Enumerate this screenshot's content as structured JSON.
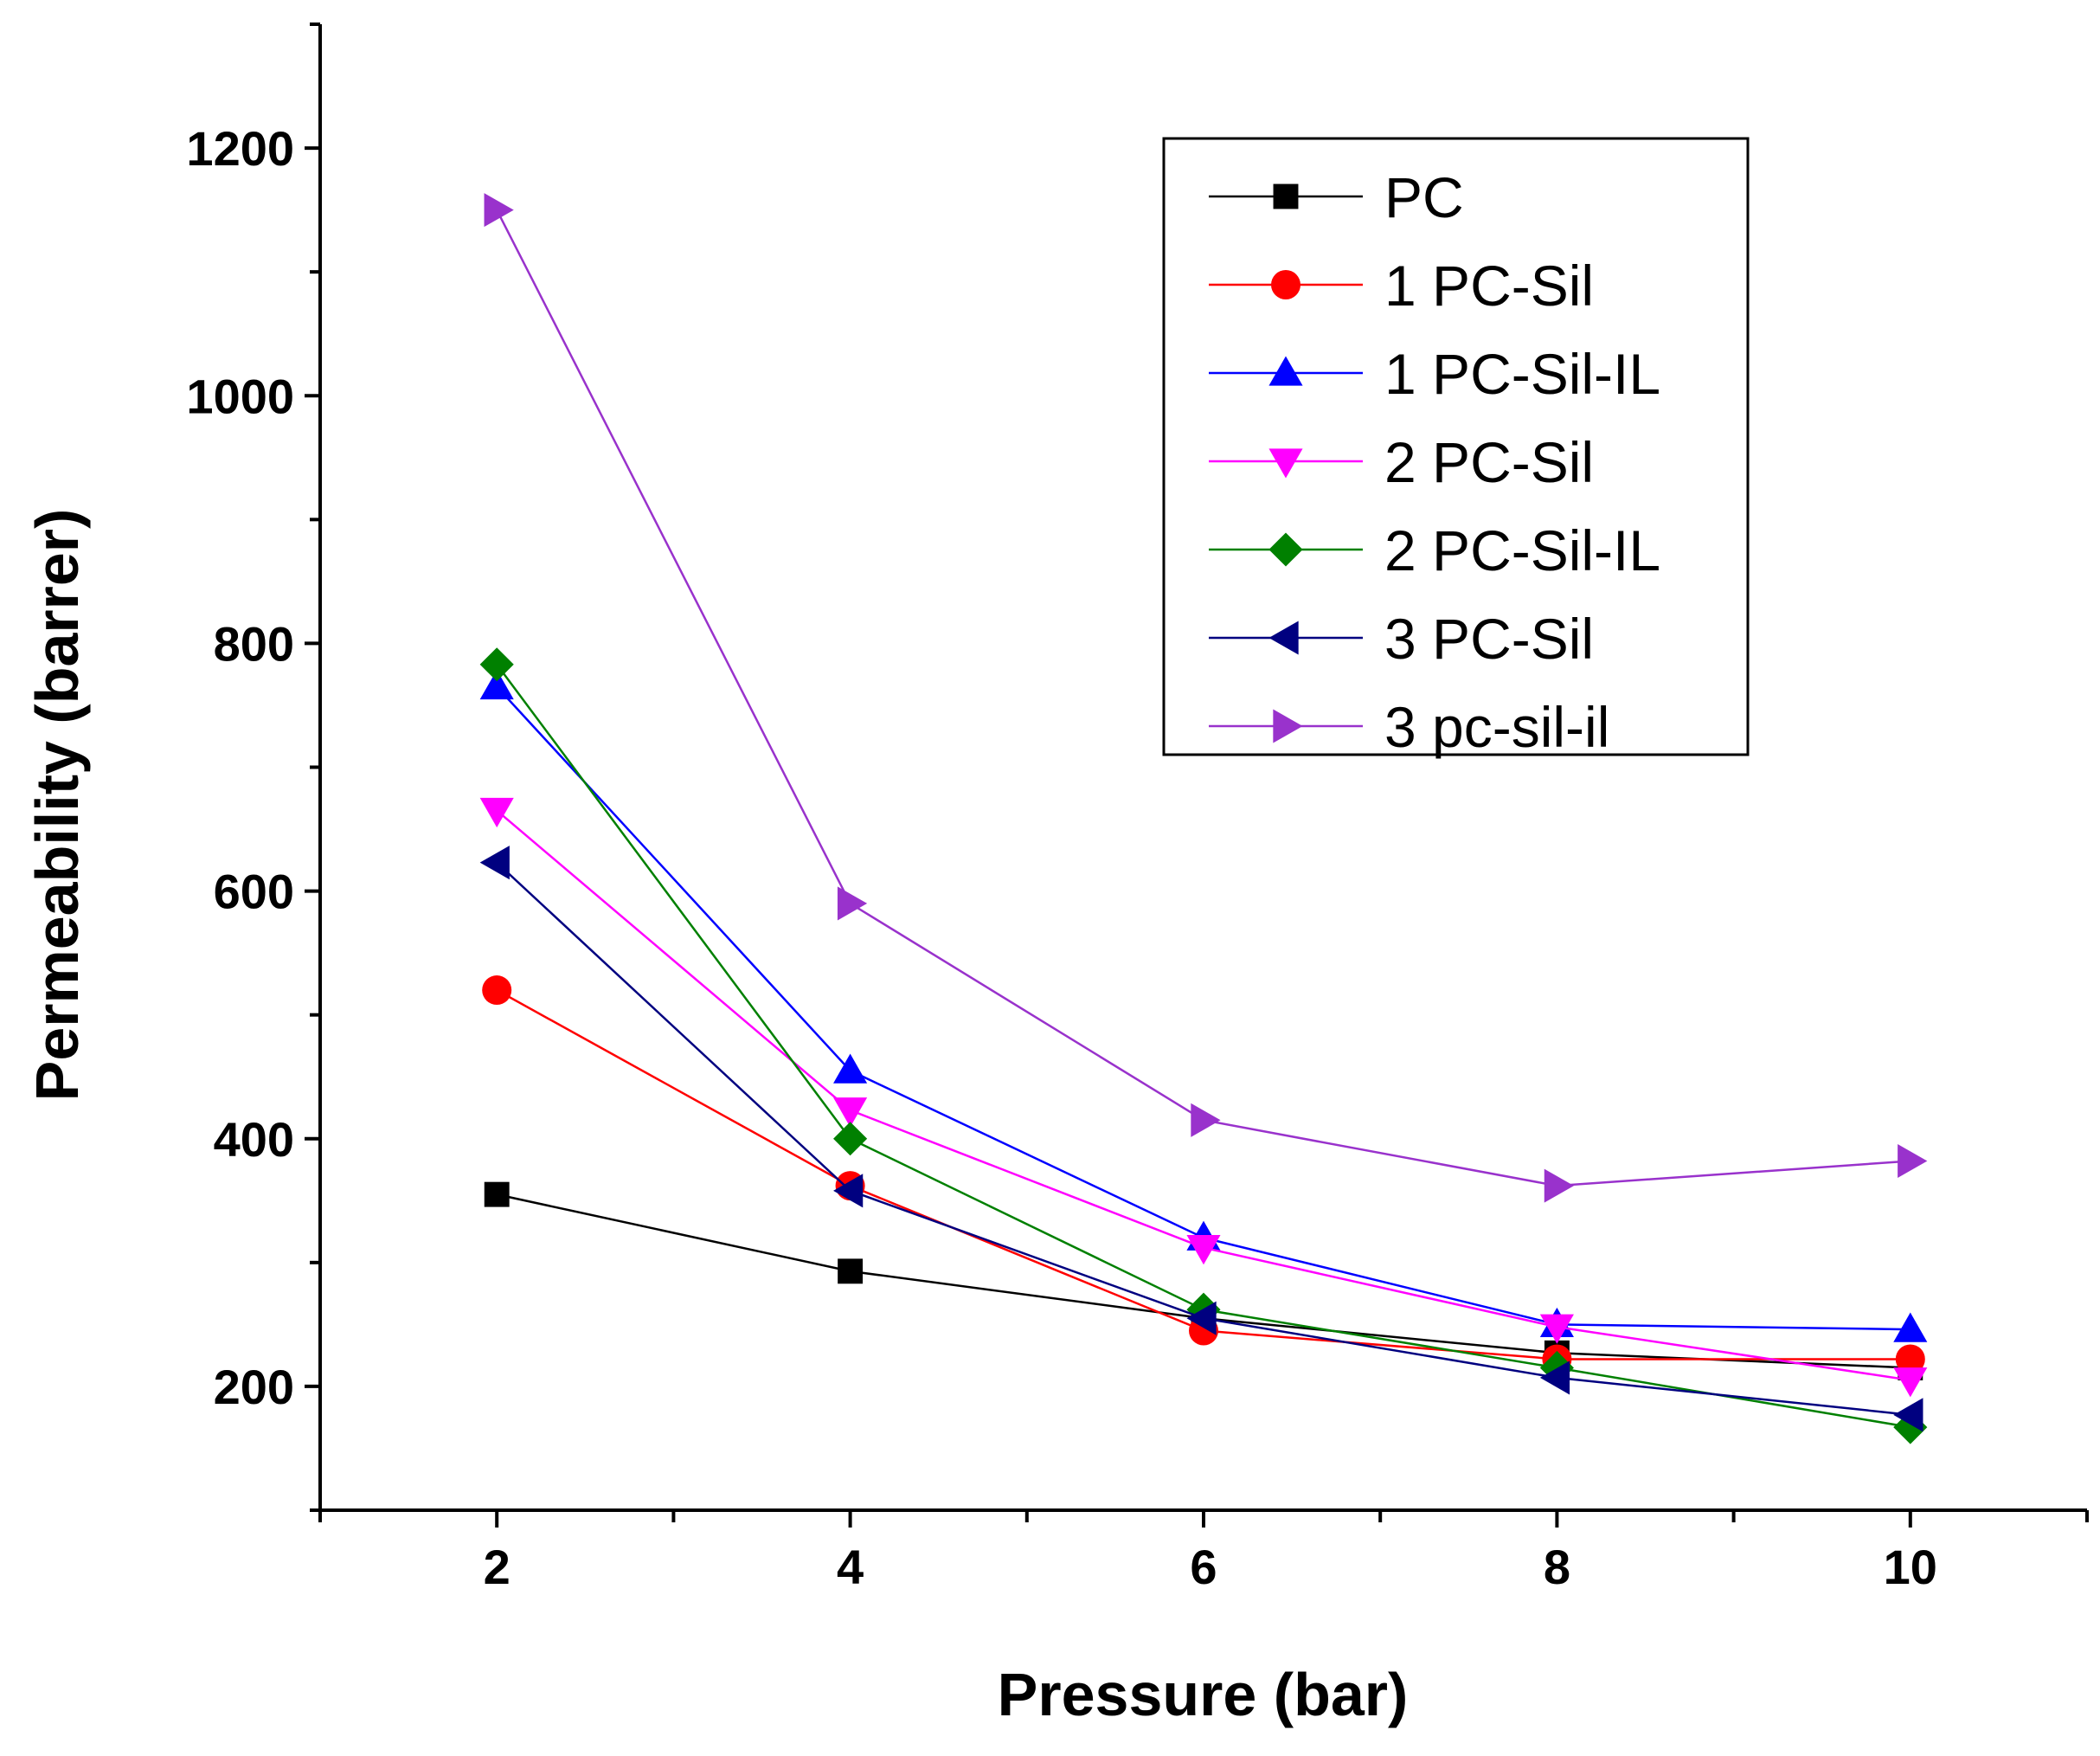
{
  "chart_data": {
    "type": "line",
    "title": "",
    "xlabel": "Pressure (bar)",
    "ylabel": "Permeability (barrer)",
    "x": [
      2,
      4,
      6,
      8,
      10
    ],
    "xlim": [
      1,
      11
    ],
    "ylim": [
      100,
      1300
    ],
    "x_ticks": [
      2,
      4,
      6,
      8,
      10
    ],
    "y_ticks": [
      200,
      400,
      600,
      800,
      1000,
      1200
    ],
    "grid": false,
    "legend_position": "top-right",
    "series": [
      {
        "name": "PC",
        "marker": "square",
        "color": "#000000",
        "values": [
          355,
          293,
          255,
          227,
          215
        ]
      },
      {
        "name": "1 PC-Sil",
        "marker": "circle",
        "color": "#ff0000",
        "values": [
          520,
          362,
          245,
          222,
          222
        ]
      },
      {
        "name": "1 PC-Sil-IL",
        "marker": "triangle-up",
        "color": "#0000ff",
        "values": [
          765,
          455,
          320,
          250,
          246
        ]
      },
      {
        "name": "2 PC-Sil",
        "marker": "triangle-down",
        "color": "#ff00ff",
        "values": [
          665,
          423,
          312,
          248,
          205
        ]
      },
      {
        "name": "2 PC-Sil-IL",
        "marker": "diamond",
        "color": "#008000",
        "values": [
          783,
          400,
          262,
          215,
          167
        ]
      },
      {
        "name": "3 PC-Sil",
        "marker": "triangle-left",
        "color": "#000080",
        "values": [
          623,
          358,
          255,
          207,
          177
        ]
      },
      {
        "name": "3 pc-sil-il",
        "marker": "triangle-right",
        "color": "#9932cc",
        "values": [
          1150,
          590,
          415,
          362,
          382
        ]
      }
    ]
  }
}
